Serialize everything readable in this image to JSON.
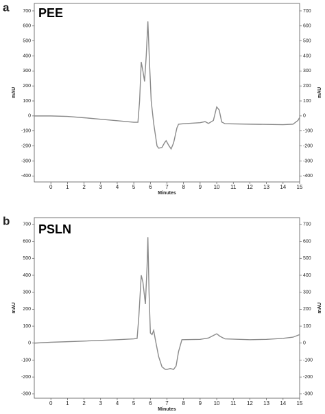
{
  "chart_data": [
    {
      "type": "line",
      "panel": "a",
      "title": "PEE",
      "x_label": "Minutes",
      "y_label": "mAU",
      "color": "#8a8a8a",
      "xlim": [
        -1,
        15
      ],
      "xticks": [
        0,
        1,
        2,
        3,
        4,
        5,
        6,
        7,
        8,
        9,
        10,
        11,
        12,
        13,
        14,
        15
      ],
      "ylim": [
        -440,
        750
      ],
      "yticks": [
        -400,
        -300,
        -200,
        -100,
        0,
        100,
        200,
        300,
        400,
        500,
        600,
        700
      ],
      "x": [
        -1,
        0,
        1,
        2,
        3,
        4,
        5,
        5.25,
        5.35,
        5.45,
        5.55,
        5.65,
        5.75,
        5.85,
        5.95,
        6.05,
        6.2,
        6.4,
        6.5,
        6.7,
        6.85,
        6.95,
        7.1,
        7.25,
        7.4,
        7.6,
        7.7,
        8,
        9,
        9.3,
        9.5,
        9.8,
        10,
        10.15,
        10.3,
        10.5,
        12,
        14,
        14.6,
        14.9,
        15
      ],
      "values": [
        0,
        0,
        -3,
        -12,
        -22,
        -32,
        -42,
        -42,
        100,
        360,
        300,
        230,
        400,
        630,
        350,
        100,
        -50,
        -200,
        -215,
        -210,
        -180,
        -165,
        -195,
        -220,
        -180,
        -80,
        -55,
        -52,
        -45,
        -38,
        -50,
        -30,
        60,
        40,
        -40,
        -52,
        -55,
        -58,
        -55,
        -30,
        -10
      ]
    },
    {
      "type": "line",
      "panel": "b",
      "title": "PSLN",
      "x_label": "Minutes",
      "y_label": "mAU",
      "color": "#8a8a8a",
      "xlim": [
        -1,
        15
      ],
      "xticks": [
        0,
        1,
        2,
        3,
        4,
        5,
        6,
        7,
        8,
        9,
        10,
        11,
        12,
        13,
        14,
        15
      ],
      "ylim": [
        -325,
        740
      ],
      "yticks": [
        -300,
        -200,
        -100,
        0,
        100,
        200,
        300,
        400,
        500,
        600,
        700
      ],
      "x": [
        -1,
        0,
        2,
        4,
        5,
        5.2,
        5.3,
        5.45,
        5.55,
        5.7,
        5.8,
        5.85,
        5.92,
        6,
        6.1,
        6.2,
        6.3,
        6.5,
        6.7,
        6.9,
        7,
        7.2,
        7.4,
        7.55,
        7.7,
        7.9,
        9,
        9.5,
        9.8,
        10,
        10.2,
        10.5,
        12,
        13,
        14,
        14.6,
        15
      ],
      "values": [
        0,
        5,
        12,
        20,
        25,
        28,
        150,
        400,
        360,
        230,
        450,
        625,
        300,
        60,
        50,
        75,
        20,
        -80,
        -140,
        -155,
        -155,
        -150,
        -155,
        -135,
        -50,
        20,
        22,
        30,
        45,
        55,
        40,
        25,
        20,
        22,
        28,
        35,
        50
      ]
    }
  ]
}
